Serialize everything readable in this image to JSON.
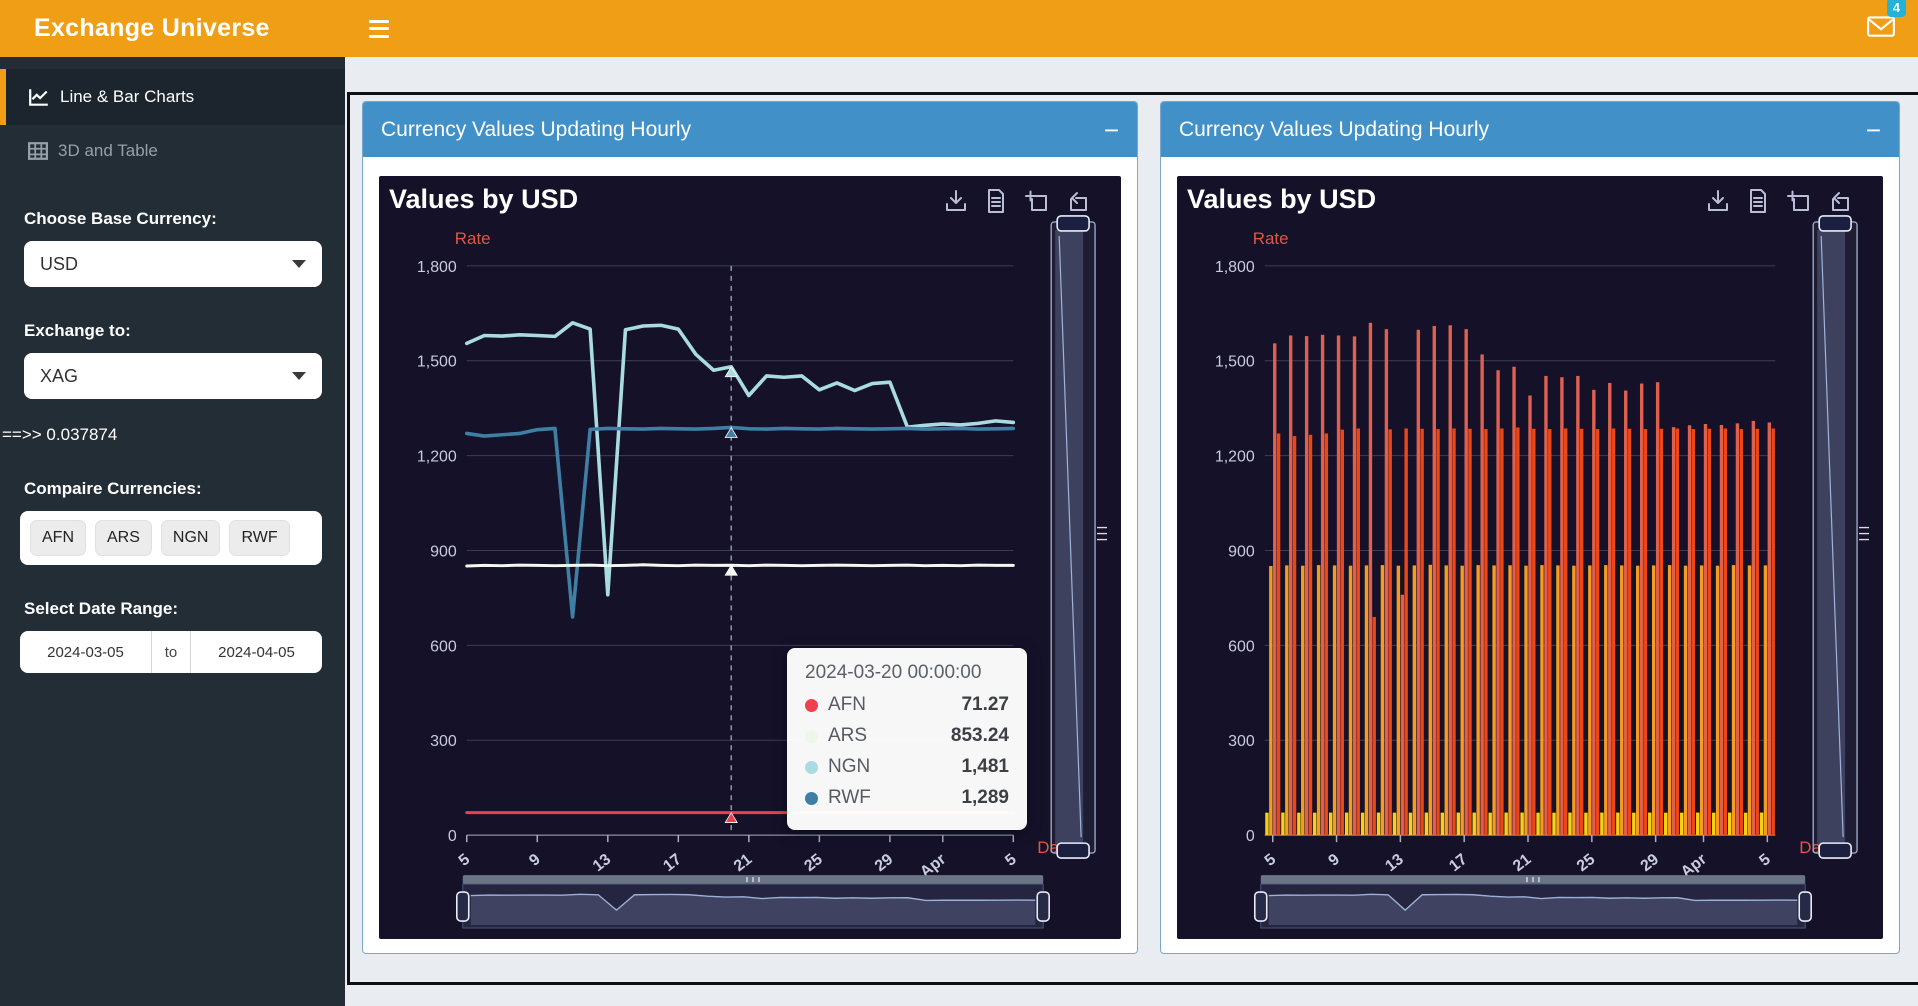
{
  "topbar": {
    "title": "Exchange Universe",
    "mail_badge": "4"
  },
  "sidebar": {
    "items": [
      {
        "label": "Line & Bar Charts"
      },
      {
        "label": "3D and Table"
      }
    ],
    "base_label": "Choose Base Currency:",
    "base_value": "USD",
    "exchange_label": "Exchange to:",
    "exchange_value": "XAG",
    "rate_text": "==>> 0.037874",
    "compare_label": "Compaire Currencies:",
    "compare_currencies": [
      "AFN",
      "ARS",
      "NGN",
      "RWF"
    ],
    "date_label": "Select Date Range:",
    "date_from": "2024-03-05",
    "date_to_word": "to",
    "date_to": "2024-04-05"
  },
  "panels": [
    {
      "title": "Currency Values Updating Hourly",
      "collapse_label": "−"
    },
    {
      "title": "Currency Values Updating Hourly",
      "collapse_label": "−"
    }
  ],
  "tooltip": {
    "header": "2024-03-20 00:00:00",
    "rows": [
      {
        "label": "AFN",
        "value": "71.27",
        "color": "#ee404d"
      },
      {
        "label": "ARS",
        "value": "853.24",
        "color": "#eef6ea"
      },
      {
        "label": "NGN",
        "value": "1,481",
        "color": "#a9dce1"
      },
      {
        "label": "RWF",
        "value": "1,289",
        "color": "#3e7fa5"
      }
    ]
  },
  "chart_data": [
    {
      "type": "line",
      "title": "Values by USD",
      "ylabel": "Rate",
      "xlabel": "Date",
      "ylim": [
        0,
        1800
      ],
      "y_ticks": [
        0,
        300,
        600,
        900,
        1200,
        1500,
        1800
      ],
      "x_count": 32,
      "x_range": [
        "2024-03-05",
        "2024-04-05"
      ],
      "x_tick_days": [
        0,
        4,
        8,
        12,
        16,
        20,
        24,
        27,
        31
      ],
      "x_tick_labels": [
        "5",
        "9",
        "13",
        "17",
        "21",
        "25",
        "29",
        "Apr",
        "5"
      ],
      "pointer_day": 15,
      "series": [
        {
          "name": "AFN",
          "color": "#ed3f4d",
          "values": [
            71.1,
            71.3,
            71.2,
            71.2,
            71.4,
            71.3,
            71.2,
            71.3,
            71.2,
            71.1,
            71.3,
            71.2,
            71.4,
            71.3,
            71.2,
            71.27,
            71.3,
            71.2,
            71.1,
            71.3,
            71.2,
            71.3,
            71.4,
            71.2,
            71.3,
            71.2,
            71.1,
            71.3,
            71.2,
            71.3,
            71.2,
            71.3
          ]
        },
        {
          "name": "ARS",
          "color": "#f2f9ef",
          "values": [
            851,
            853,
            852,
            854,
            853,
            852,
            853,
            854,
            852,
            853,
            855,
            853,
            852,
            854,
            853,
            853.24,
            852,
            854,
            853,
            852,
            853,
            854,
            853,
            852,
            853,
            854,
            852,
            853,
            852,
            854,
            853,
            853
          ]
        },
        {
          "name": "NGN",
          "color": "#a9dce1",
          "values": [
            1555,
            1580,
            1578,
            1582,
            1580,
            1577,
            1620,
            1600,
            760,
            1598,
            1610,
            1612,
            1600,
            1520,
            1470,
            1481,
            1390,
            1452,
            1448,
            1452,
            1408,
            1430,
            1406,
            1428,
            1432,
            1290,
            1296,
            1300,
            1297,
            1302,
            1310,
            1305
          ]
        },
        {
          "name": "RWF",
          "color": "#3e7fa5",
          "values": [
            1270,
            1262,
            1266,
            1270,
            1282,
            1286,
            690,
            1283,
            1286,
            1285,
            1284,
            1286,
            1285,
            1284,
            1286,
            1289,
            1285,
            1284,
            1286,
            1285,
            1284,
            1286,
            1285,
            1284,
            1285,
            1286,
            1284,
            1285,
            1286,
            1284,
            1285,
            1286
          ]
        }
      ]
    },
    {
      "type": "bar",
      "title": "Values by USD",
      "ylabel": "Rate",
      "xlabel": "Date",
      "ylim": [
        0,
        1800
      ],
      "y_ticks": [
        0,
        300,
        600,
        900,
        1200,
        1500,
        1800
      ],
      "x_count": 32,
      "x_range": [
        "2024-03-05",
        "2024-04-05"
      ],
      "x_tick_days": [
        0,
        4,
        8,
        12,
        16,
        20,
        24,
        27,
        31
      ],
      "x_tick_labels": [
        "5",
        "9",
        "13",
        "17",
        "21",
        "25",
        "29",
        "Apr",
        "5"
      ],
      "series": [
        {
          "name": "AFN",
          "color": "#f5d216",
          "values": [
            71.1,
            71.3,
            71.2,
            71.2,
            71.4,
            71.3,
            71.2,
            71.3,
            71.2,
            71.1,
            71.3,
            71.2,
            71.4,
            71.3,
            71.2,
            71.27,
            71.3,
            71.2,
            71.1,
            71.3,
            71.2,
            71.3,
            71.4,
            71.2,
            71.3,
            71.2,
            71.1,
            71.3,
            71.2,
            71.3,
            71.2,
            71.3
          ]
        },
        {
          "name": "ARS",
          "color": "#f59d20",
          "values": [
            851,
            853,
            852,
            854,
            853,
            852,
            853,
            854,
            852,
            853,
            855,
            853,
            852,
            854,
            853,
            853.24,
            852,
            854,
            853,
            852,
            853,
            854,
            853,
            852,
            853,
            854,
            852,
            853,
            852,
            854,
            853,
            853
          ]
        },
        {
          "name": "NGN",
          "color": "#e0604f",
          "values": [
            1555,
            1580,
            1578,
            1582,
            1580,
            1577,
            1620,
            1600,
            760,
            1598,
            1610,
            1612,
            1600,
            1520,
            1470,
            1481,
            1390,
            1452,
            1448,
            1452,
            1408,
            1430,
            1406,
            1428,
            1432,
            1290,
            1296,
            1300,
            1297,
            1302,
            1310,
            1305
          ]
        },
        {
          "name": "RWF",
          "color": "#ec4715",
          "values": [
            1270,
            1262,
            1266,
            1270,
            1282,
            1286,
            690,
            1283,
            1286,
            1285,
            1284,
            1286,
            1285,
            1284,
            1286,
            1289,
            1285,
            1284,
            1286,
            1285,
            1284,
            1286,
            1285,
            1284,
            1285,
            1286,
            1284,
            1285,
            1286,
            1284,
            1285,
            1286
          ]
        }
      ]
    }
  ]
}
